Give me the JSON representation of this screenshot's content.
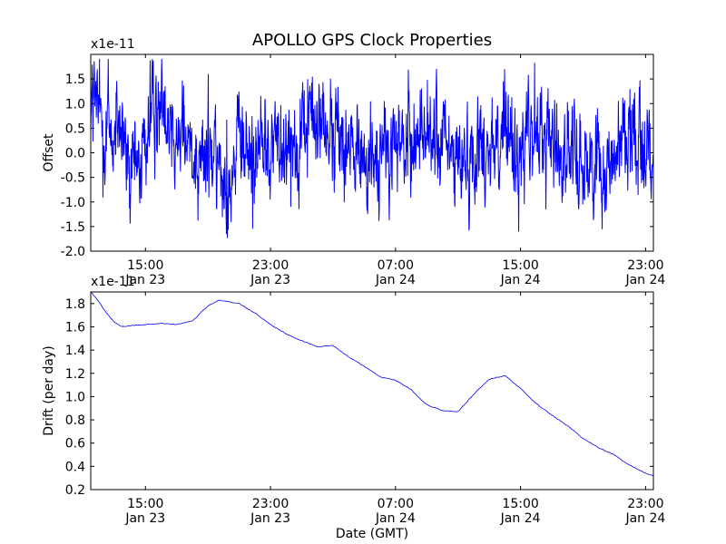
{
  "chart_data": [
    {
      "type": "line",
      "title": "APOLLO GPS Clock Properties",
      "ylabel": "Offset",
      "xlabel": "",
      "scale_note": "x1e-11",
      "ylim": [
        -2.0,
        2.0
      ],
      "y_scale_factor": 1e-11,
      "xlim": [
        "Jan 23 11:30",
        "Jan 24 23:30"
      ],
      "yticks": [
        "-2.0",
        "-1.5",
        "-1.0",
        "-0.5",
        "0.0",
        "0.5",
        "1.0",
        "1.5"
      ],
      "xticks": [
        {
          "time": "Jan 23 15:00",
          "hour": "15:00",
          "day": "Jan 23"
        },
        {
          "time": "Jan 23 23:00",
          "hour": "23:00",
          "day": "Jan 23"
        },
        {
          "time": "Jan 24 07:00",
          "hour": "07:00",
          "day": "Jan 24"
        },
        {
          "time": "Jan 24 15:00",
          "hour": "15:00",
          "day": "Jan 24"
        },
        {
          "time": "Jan 24 23:00",
          "hour": "23:00",
          "day": "Jan 24"
        }
      ],
      "series": [
        {
          "color": "#0000ff",
          "style": "noisy",
          "x": [
            "Jan 23 11:30",
            "Jan 23 12:30",
            "Jan 23 13:30",
            "Jan 23 14:00",
            "Jan 23 14:30",
            "Jan 23 15:30",
            "Jan 23 16:15",
            "Jan 23 17:00",
            "Jan 23 18:00",
            "Jan 23 19:00",
            "Jan 23 20:00",
            "Jan 23 21:00",
            "Jan 23 22:00",
            "Jan 23 23:00",
            "Jan 24 00:00",
            "Jan 24 01:00",
            "Jan 24 02:00",
            "Jan 24 03:00",
            "Jan 24 04:00",
            "Jan 24 05:00",
            "Jan 24 06:00",
            "Jan 24 07:00",
            "Jan 24 08:00",
            "Jan 24 09:00",
            "Jan 24 10:00",
            "Jan 24 11:00",
            "Jan 24 12:00",
            "Jan 24 13:00",
            "Jan 24 14:00",
            "Jan 24 15:00",
            "Jan 24 16:00",
            "Jan 24 17:00",
            "Jan 24 18:00",
            "Jan 24 19:00",
            "Jan 24 20:00",
            "Jan 24 21:00",
            "Jan 24 22:00",
            "Jan 24 23:00",
            "Jan 24 23:30"
          ],
          "y": [
            1.2,
            0.4,
            0.3,
            -0.6,
            -0.3,
            0.7,
            1.0,
            0.4,
            0.2,
            -0.1,
            -0.4,
            0.0,
            0.1,
            0.2,
            0.2,
            0.4,
            0.7,
            0.3,
            0.1,
            0.0,
            -0.1,
            0.1,
            0.2,
            0.5,
            0.1,
            -0.2,
            0.0,
            0.3,
            0.2,
            0.1,
            0.3,
            0.2,
            0.0,
            -0.1,
            -0.2,
            0.0,
            0.4,
            0.2,
            -0.1
          ],
          "min": -1.8,
          "max": 1.9
        }
      ]
    },
    {
      "type": "line",
      "title": "",
      "ylabel": "Drift (per day)",
      "xlabel": "Date (GMT)",
      "scale_note": "x1e-11",
      "ylim": [
        0.2,
        1.9
      ],
      "y_scale_factor": 1e-11,
      "xlim": [
        "Jan 23 11:30",
        "Jan 24 23:30"
      ],
      "yticks": [
        "0.2",
        "0.4",
        "0.6",
        "0.8",
        "1.0",
        "1.2",
        "1.4",
        "1.6",
        "1.8"
      ],
      "xticks": [
        {
          "time": "Jan 23 15:00",
          "hour": "15:00",
          "day": "Jan 23"
        },
        {
          "time": "Jan 23 23:00",
          "hour": "23:00",
          "day": "Jan 23"
        },
        {
          "time": "Jan 24 07:00",
          "hour": "07:00",
          "day": "Jan 24"
        },
        {
          "time": "Jan 24 15:00",
          "hour": "15:00",
          "day": "Jan 24"
        },
        {
          "time": "Jan 24 23:00",
          "hour": "23:00",
          "day": "Jan 24"
        }
      ],
      "series": [
        {
          "color": "#0000ff",
          "style": "smooth",
          "x": [
            "Jan 23 11:30",
            "Jan 23 12:00",
            "Jan 23 12:30",
            "Jan 23 13:00",
            "Jan 23 13:30",
            "Jan 23 14:00",
            "Jan 23 15:00",
            "Jan 23 16:00",
            "Jan 23 17:00",
            "Jan 23 18:00",
            "Jan 23 19:00",
            "Jan 23 19:45",
            "Jan 23 21:00",
            "Jan 23 22:00",
            "Jan 23 23:00",
            "Jan 24 00:00",
            "Jan 24 01:00",
            "Jan 24 02:00",
            "Jan 24 03:00",
            "Jan 24 04:00",
            "Jan 24 05:00",
            "Jan 24 06:00",
            "Jan 24 07:00",
            "Jan 24 08:00",
            "Jan 24 08:30",
            "Jan 24 09:00",
            "Jan 24 10:00",
            "Jan 24 11:00",
            "Jan 24 12:00",
            "Jan 24 13:00",
            "Jan 24 14:00",
            "Jan 24 15:00",
            "Jan 24 16:00",
            "Jan 24 17:00",
            "Jan 24 18:00",
            "Jan 24 19:00",
            "Jan 24 20:00",
            "Jan 24 21:00",
            "Jan 24 21:30",
            "Jan 24 22:00",
            "Jan 24 23:00",
            "Jan 24 23:30"
          ],
          "y": [
            1.9,
            1.82,
            1.72,
            1.64,
            1.6,
            1.61,
            1.62,
            1.63,
            1.62,
            1.65,
            1.78,
            1.83,
            1.8,
            1.72,
            1.62,
            1.54,
            1.48,
            1.43,
            1.44,
            1.34,
            1.26,
            1.17,
            1.14,
            1.06,
            0.99,
            0.93,
            0.88,
            0.87,
            1.02,
            1.15,
            1.18,
            1.07,
            0.94,
            0.84,
            0.75,
            0.64,
            0.56,
            0.5,
            0.45,
            0.41,
            0.34,
            0.32
          ]
        }
      ]
    }
  ]
}
